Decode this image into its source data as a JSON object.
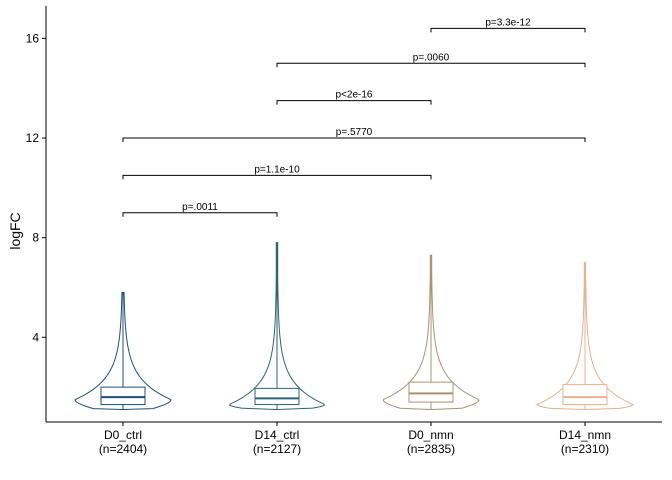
{
  "chart_data": {
    "type": "violin",
    "ylabel": "logFC",
    "xlabel": "",
    "ylim": [
      0.6,
      17.3
    ],
    "yticks": [
      4,
      8,
      12,
      16
    ],
    "grid": false,
    "legend": "none",
    "categories": [
      "D0_ctrl",
      "D14_ctrl",
      "D0_nmn",
      "D14_nmn"
    ],
    "counts": [
      "(n=2404)",
      "(n=2127)",
      "(n=2835)",
      "(n=2310)"
    ],
    "colors": [
      "#1f4e79",
      "#2e6470",
      "#a89470",
      "#e8b090"
    ],
    "series": [
      {
        "category": "D0_ctrl",
        "min": 1.1,
        "q1": 1.3,
        "median": 1.6,
        "q3": 2.0,
        "max": 5.8,
        "mode": 1.5
      },
      {
        "category": "D14_ctrl",
        "min": 1.1,
        "q1": 1.3,
        "median": 1.55,
        "q3": 1.95,
        "max": 7.8,
        "mode": 1.3
      },
      {
        "category": "D0_nmn",
        "min": 1.1,
        "q1": 1.4,
        "median": 1.75,
        "q3": 2.2,
        "max": 7.3,
        "mode": 1.5
      },
      {
        "category": "D14_nmn",
        "min": 1.1,
        "q1": 1.3,
        "median": 1.6,
        "q3": 2.1,
        "max": 7.0,
        "mode": 1.3
      }
    ],
    "comparisons": [
      {
        "from": "D0_ctrl",
        "to": "D14_ctrl",
        "y": 9.0,
        "label": "p=.0011"
      },
      {
        "from": "D0_ctrl",
        "to": "D0_nmn",
        "y": 10.5,
        "label": "p=1.1e-10"
      },
      {
        "from": "D0_ctrl",
        "to": "D14_nmn",
        "y": 12.0,
        "label": "p=.5770"
      },
      {
        "from": "D14_ctrl",
        "to": "D0_nmn",
        "y": 13.5,
        "label": "p<2e-16"
      },
      {
        "from": "D14_ctrl",
        "to": "D14_nmn",
        "y": 15.0,
        "label": "p=.0060"
      },
      {
        "from": "D0_nmn",
        "to": "D14_nmn",
        "y": 16.4,
        "label": "p=3.3e-12"
      }
    ]
  }
}
